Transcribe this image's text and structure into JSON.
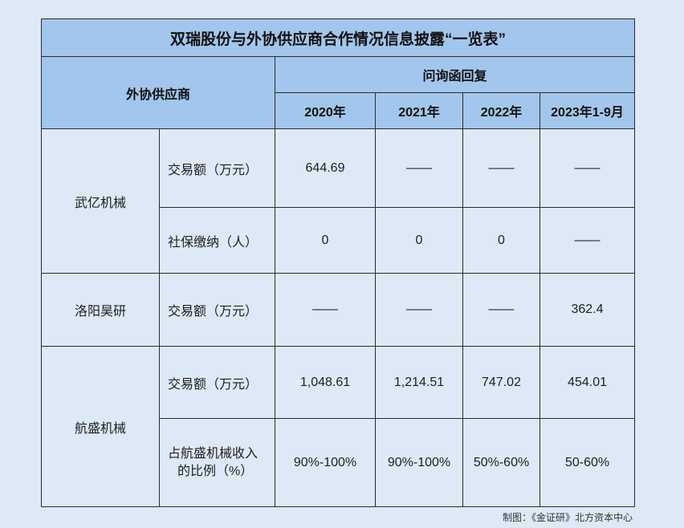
{
  "title": "双瑞股份与外协供应商合作情况信息披露“一览表”",
  "header": {
    "supplier_col": "外协供应商",
    "group": "问询函回复",
    "years": [
      "2020年",
      "2021年",
      "2022年",
      "2023年1-9月"
    ]
  },
  "rows": {
    "wuyi": {
      "name": "武亿机械",
      "r1": {
        "label": "交易额（万元）",
        "v": [
          "644.69",
          "——",
          "——",
          "——"
        ]
      },
      "r2": {
        "label": "社保缴纳（人）",
        "v": [
          "0",
          "0",
          "0",
          "——"
        ]
      }
    },
    "luoyang": {
      "name": "洛阳昊研",
      "r1": {
        "label": "交易额（万元）",
        "v": [
          "——",
          "——",
          "——",
          "362.4"
        ]
      }
    },
    "hangsheng": {
      "name": "航盛机械",
      "r1": {
        "label": "交易额（万元）",
        "v": [
          "1,048.61",
          "1,214.51",
          "747.02",
          "454.01"
        ]
      },
      "r2": {
        "label_line1": "占航盛机械收入",
        "label_line2": "的比例（%）",
        "v": [
          "90%-100%",
          "90%-100%",
          "50%-60%",
          "50-60%"
        ]
      }
    }
  },
  "footer": "制图：《金证研》北方资本中心"
}
